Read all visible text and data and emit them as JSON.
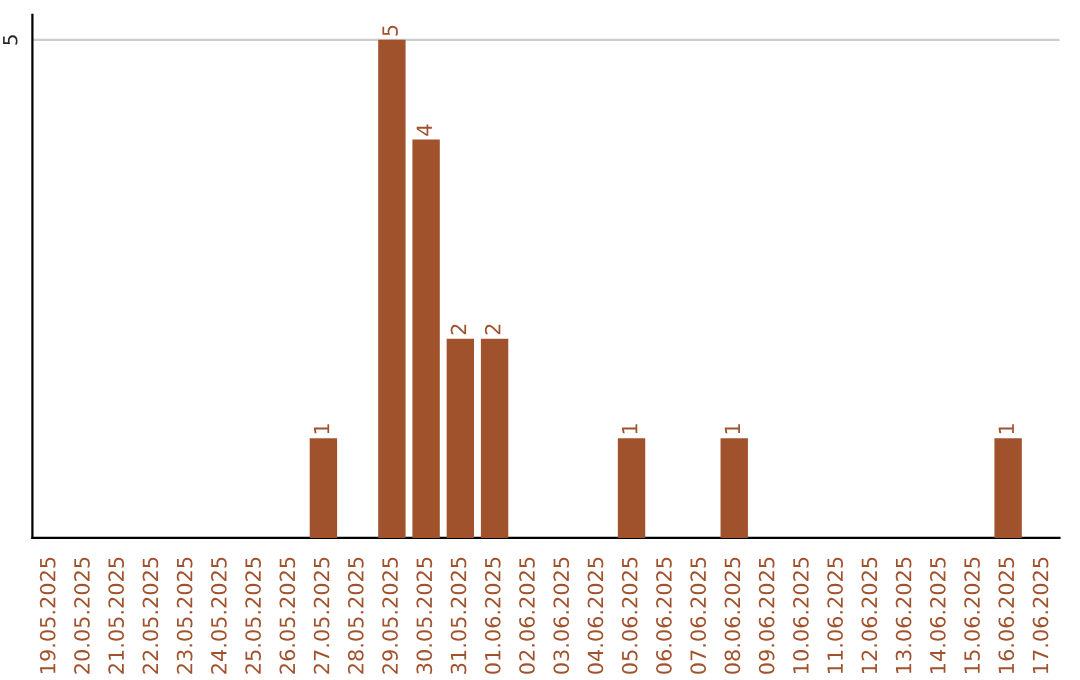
{
  "chart_data": {
    "type": "bar",
    "categories": [
      "19.05.2025",
      "20.05.2025",
      "21.05.2025",
      "22.05.2025",
      "23.05.2025",
      "24.05.2025",
      "25.05.2025",
      "26.05.2025",
      "27.05.2025",
      "28.05.2025",
      "29.05.2025",
      "30.05.2025",
      "31.05.2025",
      "01.06.2025",
      "02.06.2025",
      "03.06.2025",
      "04.06.2025",
      "05.06.2025",
      "06.06.2025",
      "07.06.2025",
      "08.06.2025",
      "09.06.2025",
      "10.06.2025",
      "11.06.2025",
      "12.06.2025",
      "13.06.2025",
      "14.06.2025",
      "15.06.2025",
      "16.06.2025",
      "17.06.2025"
    ],
    "values": [
      0,
      0,
      0,
      0,
      0,
      0,
      0,
      0,
      1,
      0,
      5,
      4,
      2,
      2,
      0,
      0,
      0,
      1,
      0,
      0,
      1,
      0,
      0,
      0,
      0,
      0,
      0,
      0,
      1,
      0
    ],
    "value_labels": [
      null,
      null,
      null,
      null,
      null,
      null,
      null,
      null,
      "1",
      null,
      "5",
      "4",
      "2",
      "2",
      null,
      null,
      null,
      "1",
      null,
      null,
      "1",
      null,
      null,
      null,
      null,
      null,
      null,
      null,
      "1",
      null
    ],
    "color": "#a0522d",
    "ylim": [
      0,
      5.25
    ],
    "yticks": [
      5
    ],
    "grid": "y"
  }
}
